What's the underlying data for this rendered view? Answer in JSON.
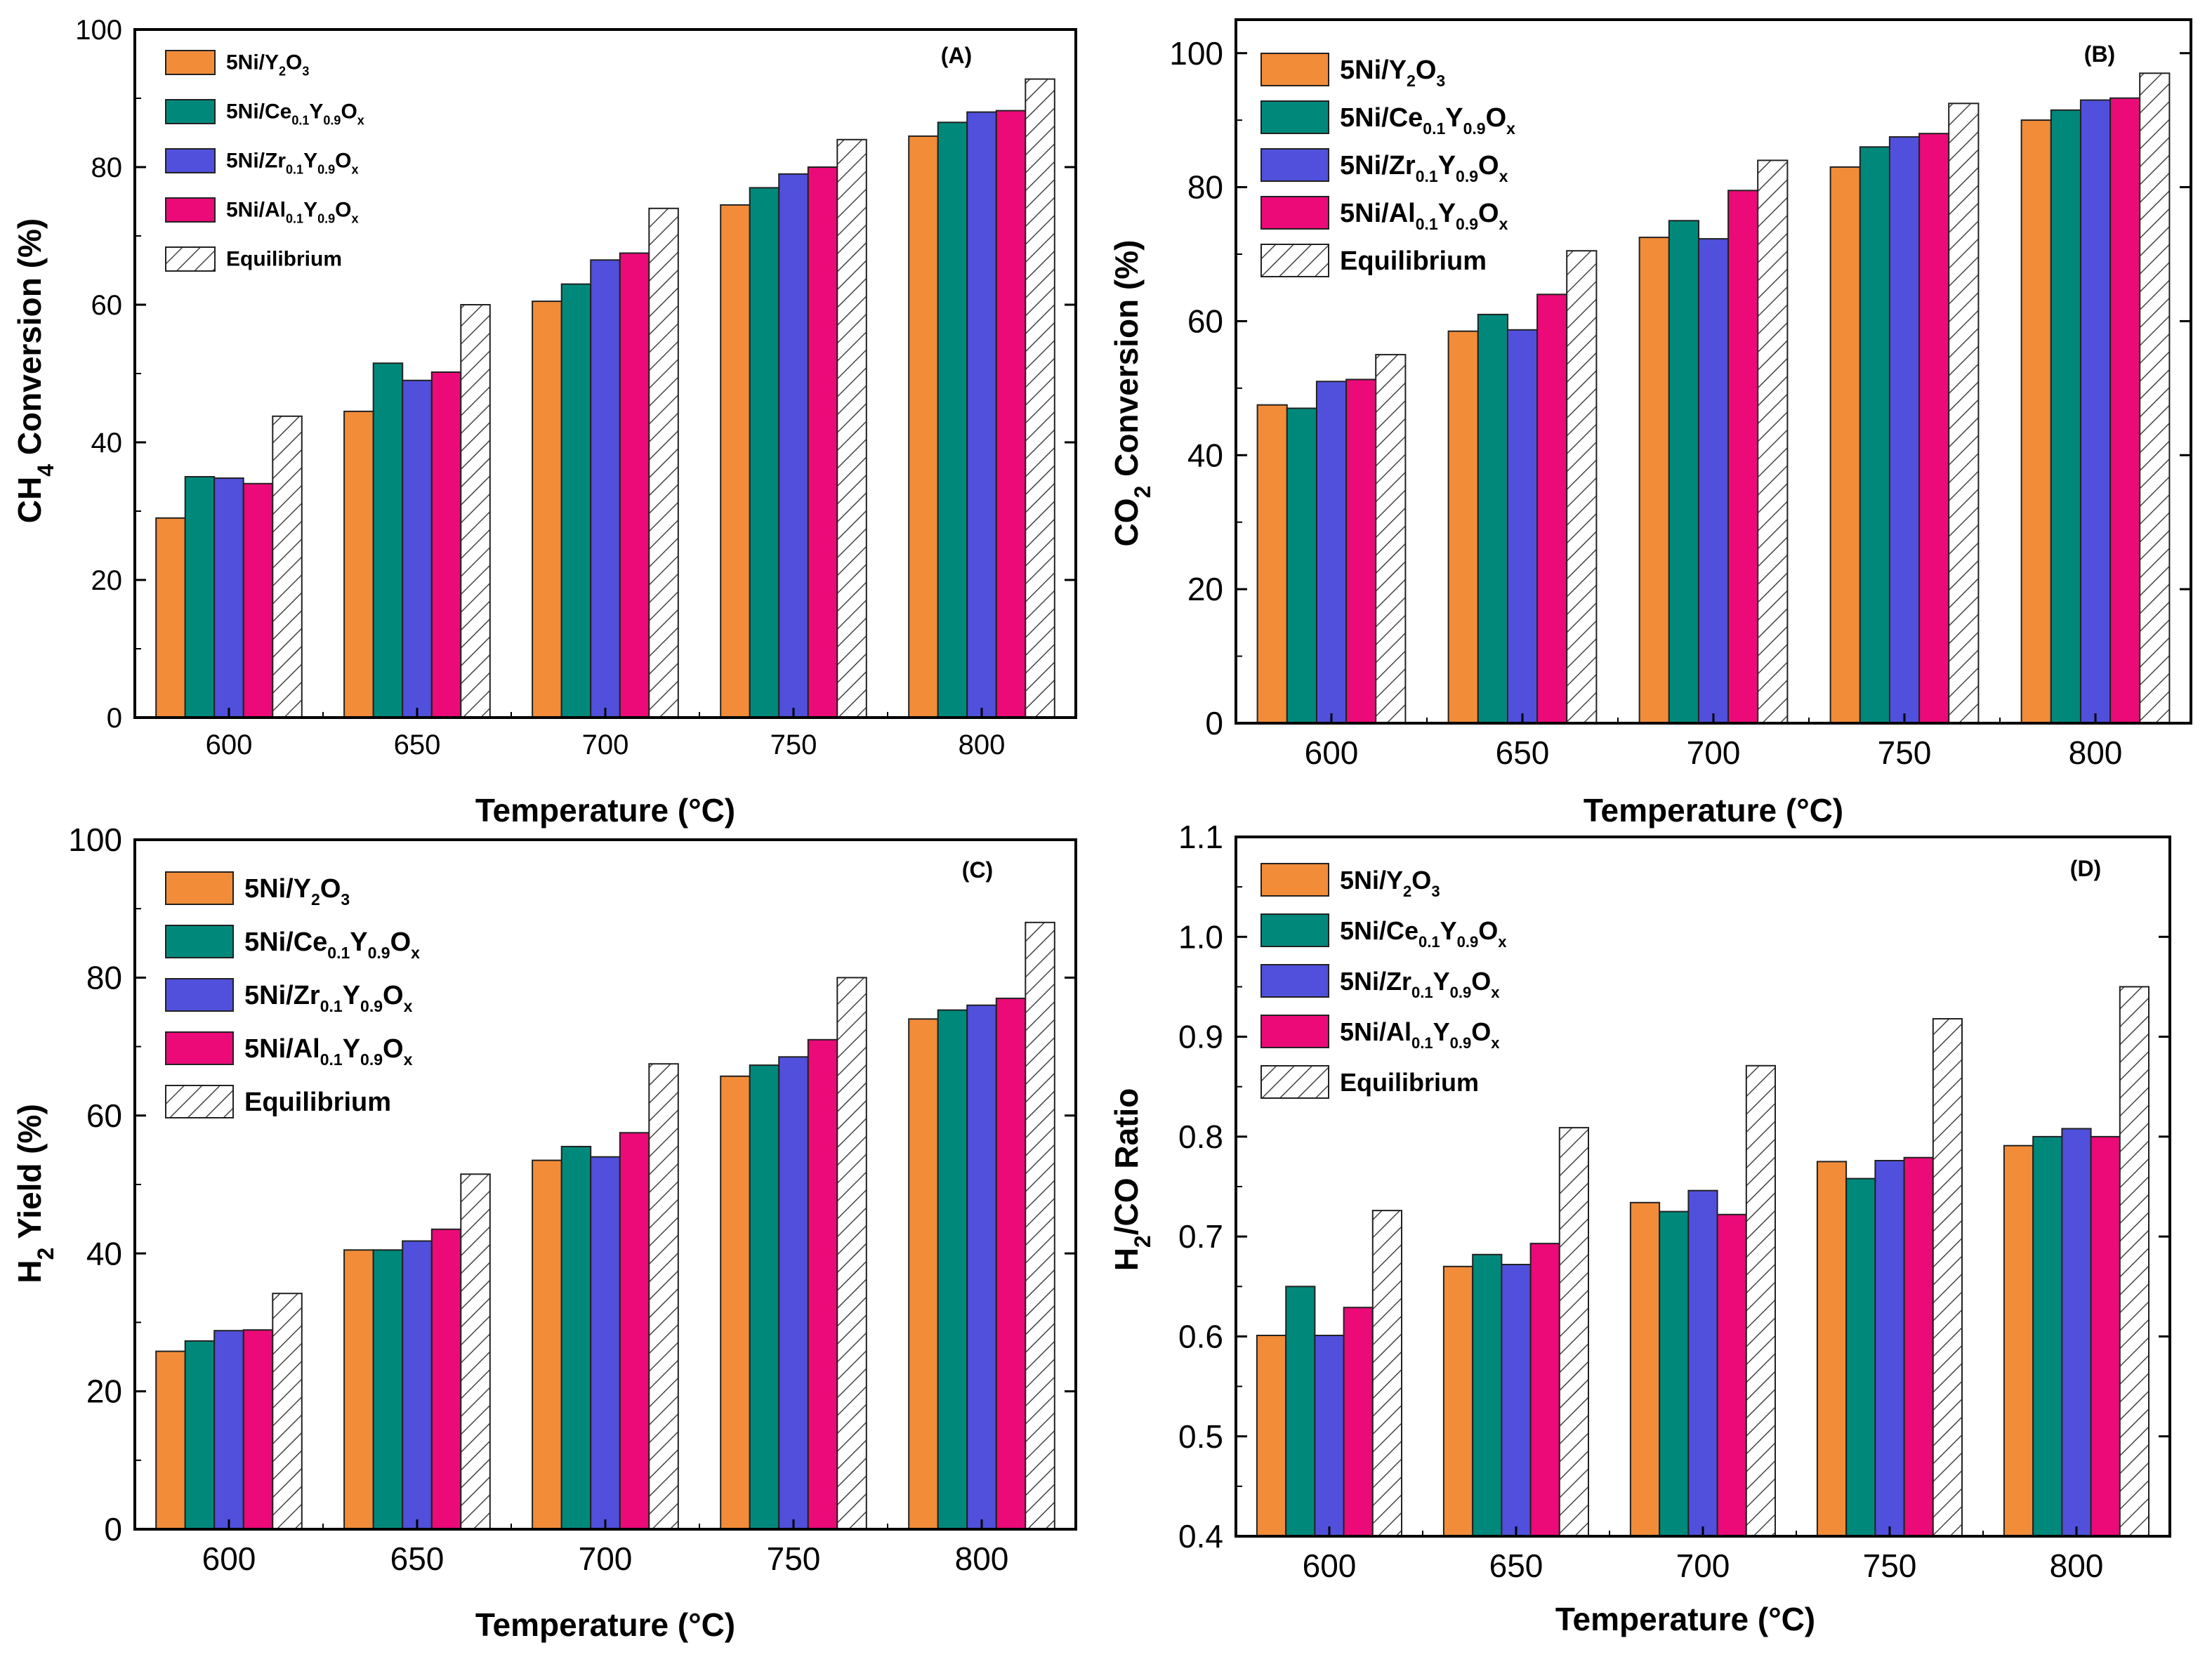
{
  "series_styles": [
    {
      "key": "y2o3",
      "color": "#F28C38",
      "hatch": false
    },
    {
      "key": "ce",
      "color": "#00897B",
      "hatch": false
    },
    {
      "key": "zr",
      "color": "#5050DC",
      "hatch": false
    },
    {
      "key": "al",
      "color": "#EB0A78",
      "hatch": false
    },
    {
      "key": "eq",
      "color": "#ffffff",
      "hatch": true
    }
  ],
  "legend_labels": [
    {
      "base": "5Ni/Y",
      "parts": [
        [
          "sub",
          "2"
        ],
        [
          "n",
          "O"
        ],
        [
          "sub",
          "3"
        ]
      ]
    },
    {
      "base": "5Ni/Ce",
      "parts": [
        [
          "sub",
          "0.1"
        ],
        [
          "n",
          "Y"
        ],
        [
          "sub",
          "0.9"
        ],
        [
          "n",
          "O"
        ],
        [
          "sub",
          "x"
        ]
      ]
    },
    {
      "base": "5Ni/Zr",
      "parts": [
        [
          "sub",
          "0.1"
        ],
        [
          "n",
          "Y"
        ],
        [
          "sub",
          "0.9"
        ],
        [
          "n",
          "O"
        ],
        [
          "sub",
          "x"
        ]
      ]
    },
    {
      "base": "5Ni/Al",
      "parts": [
        [
          "sub",
          "0.1"
        ],
        [
          "n",
          "Y"
        ],
        [
          "sub",
          "0.9"
        ],
        [
          "n",
          "O"
        ],
        [
          "sub",
          "x"
        ]
      ]
    },
    {
      "base": "Equilibrium",
      "parts": []
    }
  ],
  "chart_data": [
    {
      "type": "bar",
      "panel": "(A)",
      "categories": [
        "600",
        "650",
        "700",
        "750",
        "800"
      ],
      "xlabel": "Temperature (°C)",
      "ylabel": "CH4 Conversion (%)",
      "ylim": [
        0,
        100
      ],
      "yticks": [
        "0",
        "20",
        "40",
        "60",
        "80",
        "100"
      ],
      "series": [
        {
          "name": "5Ni/Y2O3",
          "values": [
            29,
            44.5,
            60.5,
            74.5,
            84.5
          ]
        },
        {
          "name": "5Ni/Ce0.1Y0.9Ox",
          "values": [
            35,
            51.5,
            63,
            77,
            86.5
          ]
        },
        {
          "name": "5Ni/Zr0.1Y0.9Ox",
          "values": [
            34.8,
            49,
            66.5,
            79,
            88
          ]
        },
        {
          "name": "5Ni/Al0.1Y0.9Ox",
          "values": [
            34,
            50.2,
            67.5,
            80,
            88.2
          ]
        },
        {
          "name": "Equilibrium",
          "values": [
            43.8,
            60,
            74,
            84,
            92.8
          ]
        }
      ]
    },
    {
      "type": "bar",
      "panel": "(B)",
      "categories": [
        "600",
        "650",
        "700",
        "750",
        "800"
      ],
      "xlabel": "Temperature (°C)",
      "ylabel": "CO2 Conversion (%)",
      "ylim": [
        0,
        105
      ],
      "yticks": [
        "0",
        "20",
        "40",
        "60",
        "80",
        "100"
      ],
      "series": [
        {
          "name": "5Ni/Y2O3",
          "values": [
            47.5,
            58.5,
            72.5,
            83,
            90
          ]
        },
        {
          "name": "5Ni/Ce0.1Y0.9Ox",
          "values": [
            47,
            61,
            75,
            86,
            91.5
          ]
        },
        {
          "name": "5Ni/Zr0.1Y0.9Ox",
          "values": [
            51,
            58.7,
            72.3,
            87.5,
            93
          ]
        },
        {
          "name": "5Ni/Al0.1Y0.9Ox",
          "values": [
            51.3,
            64,
            79.5,
            88,
            93.3
          ]
        },
        {
          "name": "Equilibrium",
          "values": [
            55,
            70.5,
            84,
            92.5,
            97
          ]
        }
      ]
    },
    {
      "type": "bar",
      "panel": "(C)",
      "categories": [
        "600",
        "650",
        "700",
        "750",
        "800"
      ],
      "xlabel": "Temperature (°C)",
      "ylabel": "H2 Yield (%)",
      "ylim": [
        0,
        100
      ],
      "yticks": [
        "0",
        "20",
        "40",
        "60",
        "80",
        "100"
      ],
      "series": [
        {
          "name": "5Ni/Y2O3",
          "values": [
            25.8,
            40.5,
            53.5,
            65.7,
            74
          ]
        },
        {
          "name": "5Ni/Ce0.1Y0.9Ox",
          "values": [
            27.3,
            40.5,
            55.5,
            67.3,
            75.3
          ]
        },
        {
          "name": "5Ni/Zr0.1Y0.9Ox",
          "values": [
            28.8,
            41.8,
            54,
            68.5,
            76
          ]
        },
        {
          "name": "5Ni/Al0.1Y0.9Ox",
          "values": [
            28.9,
            43.5,
            57.5,
            71,
            77
          ]
        },
        {
          "name": "Equilibrium",
          "values": [
            34.2,
            51.5,
            67.5,
            80,
            88
          ]
        }
      ]
    },
    {
      "type": "bar",
      "panel": "(D)",
      "categories": [
        "600",
        "650",
        "700",
        "750",
        "800"
      ],
      "xlabel": "Temperature (°C)",
      "ylabel": "H2/CO Ratio",
      "ylim": [
        0.4,
        1.1
      ],
      "yticks": [
        "0.4",
        "0.5",
        "0.6",
        "0.7",
        "0.8",
        "0.9",
        "1.0",
        "1.1"
      ],
      "series": [
        {
          "name": "5Ni/Y2O3",
          "values": [
            0.601,
            0.67,
            0.734,
            0.775,
            0.791
          ]
        },
        {
          "name": "5Ni/Ce0.1Y0.9Ox",
          "values": [
            0.65,
            0.682,
            0.725,
            0.758,
            0.8
          ]
        },
        {
          "name": "5Ni/Zr0.1Y0.9Ox",
          "values": [
            0.601,
            0.672,
            0.746,
            0.776,
            0.808
          ]
        },
        {
          "name": "5Ni/Al0.1Y0.9Ox",
          "values": [
            0.629,
            0.693,
            0.722,
            0.779,
            0.8
          ]
        },
        {
          "name": "Equilibrium",
          "values": [
            0.726,
            0.809,
            0.871,
            0.918,
            0.95
          ]
        }
      ]
    }
  ]
}
